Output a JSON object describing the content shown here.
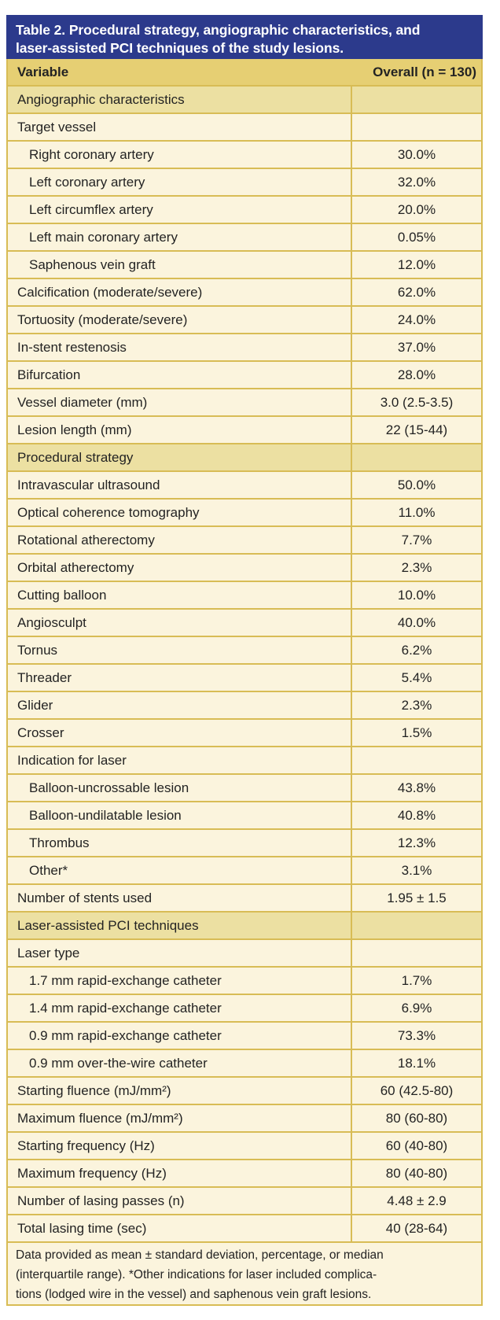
{
  "colors": {
    "title_bar": "#2c3a8c",
    "title_text": "#ffffff",
    "header_row_bg": "#e6cf73",
    "section_row_bg": "#ece0a2",
    "row_bg": "#fbf4dd",
    "grid_line": "#d8bc55",
    "text": "#232323"
  },
  "table": {
    "title_lines": [
      "Table 2. Procedural strategy, angiographic characteristics, and",
      "laser-assisted PCI techniques of the study lesions."
    ],
    "header": {
      "variable_label": "Variable",
      "overall_label": "Overall (n = 130)"
    },
    "rows": [
      {
        "type": "section",
        "label": "Angiographic characteristics",
        "value": "",
        "indent": false
      },
      {
        "type": "data",
        "label": "Target vessel",
        "value": "",
        "indent": false
      },
      {
        "type": "data",
        "label": "Right coronary artery",
        "value": "30.0%",
        "indent": true
      },
      {
        "type": "data",
        "label": "Left coronary artery",
        "value": "32.0%",
        "indent": true
      },
      {
        "type": "data",
        "label": "Left circumflex artery",
        "value": "20.0%",
        "indent": true
      },
      {
        "type": "data",
        "label": "Left main coronary artery",
        "value": "0.05%",
        "indent": true
      },
      {
        "type": "data",
        "label": "Saphenous vein graft",
        "value": "12.0%",
        "indent": true
      },
      {
        "type": "data",
        "label": "Calcification (moderate/severe)",
        "value": "62.0%",
        "indent": false
      },
      {
        "type": "data",
        "label": "Tortuosity (moderate/severe)",
        "value": "24.0%",
        "indent": false
      },
      {
        "type": "data",
        "label": "In-stent restenosis",
        "value": "37.0%",
        "indent": false
      },
      {
        "type": "data",
        "label": "Bifurcation",
        "value": "28.0%",
        "indent": false
      },
      {
        "type": "data",
        "label": "Vessel diameter (mm)",
        "value": "3.0 (2.5-3.5)",
        "indent": false
      },
      {
        "type": "data",
        "label": "Lesion length (mm)",
        "value": "22 (15-44)",
        "indent": false
      },
      {
        "type": "section",
        "label": "Procedural strategy",
        "value": "",
        "indent": false
      },
      {
        "type": "data",
        "label": "Intravascular ultrasound",
        "value": "50.0%",
        "indent": false
      },
      {
        "type": "data",
        "label": "Optical coherence tomography",
        "value": "11.0%",
        "indent": false
      },
      {
        "type": "data",
        "label": "Rotational atherectomy",
        "value": "7.7%",
        "indent": false
      },
      {
        "type": "data",
        "label": "Orbital atherectomy",
        "value": "2.3%",
        "indent": false
      },
      {
        "type": "data",
        "label": "Cutting balloon",
        "value": "10.0%",
        "indent": false
      },
      {
        "type": "data",
        "label": "Angiosculpt",
        "value": "40.0%",
        "indent": false
      },
      {
        "type": "data",
        "label": "Tornus",
        "value": "6.2%",
        "indent": false
      },
      {
        "type": "data",
        "label": "Threader",
        "value": "5.4%",
        "indent": false
      },
      {
        "type": "data",
        "label": "Glider",
        "value": "2.3%",
        "indent": false
      },
      {
        "type": "data",
        "label": "Crosser",
        "value": "1.5%",
        "indent": false
      },
      {
        "type": "data",
        "label": "Indication for laser",
        "value": "",
        "indent": false
      },
      {
        "type": "data",
        "label": "Balloon-uncrossable lesion",
        "value": "43.8%",
        "indent": true
      },
      {
        "type": "data",
        "label": "Balloon-undilatable lesion",
        "value": "40.8%",
        "indent": true
      },
      {
        "type": "data",
        "label": "Thrombus",
        "value": "12.3%",
        "indent": true
      },
      {
        "type": "data",
        "label": "Other*",
        "value": "3.1%",
        "indent": true
      },
      {
        "type": "data",
        "label": "Number of stents used",
        "value": "1.95 ± 1.5",
        "indent": false
      },
      {
        "type": "section",
        "label": "Laser-assisted PCI techniques",
        "value": "",
        "indent": false
      },
      {
        "type": "data",
        "label": "Laser type",
        "value": "",
        "indent": false
      },
      {
        "type": "data",
        "label": "1.7 mm rapid-exchange catheter",
        "value": "1.7%",
        "indent": true
      },
      {
        "type": "data",
        "label": "1.4 mm  rapid-exchange catheter",
        "value": "6.9%",
        "indent": true
      },
      {
        "type": "data",
        "label": "0.9 mm  rapid-exchange catheter",
        "value": "73.3%",
        "indent": true
      },
      {
        "type": "data",
        "label": "0.9 mm over-the-wire catheter",
        "value": "18.1%",
        "indent": true
      },
      {
        "type": "data",
        "label": "Starting fluence (mJ/mm²)",
        "value": "60 (42.5-80)",
        "indent": false
      },
      {
        "type": "data",
        "label": "Maximum fluence (mJ/mm²)",
        "value": "80 (60-80)",
        "indent": false
      },
      {
        "type": "data",
        "label": "Starting frequency (Hz)",
        "value": "60 (40-80)",
        "indent": false
      },
      {
        "type": "data",
        "label": "Maximum frequency (Hz)",
        "value": "80 (40-80)",
        "indent": false
      },
      {
        "type": "data",
        "label": "Number of lasing passes (n)",
        "value": "4.48 ± 2.9",
        "indent": false
      },
      {
        "type": "data",
        "label": "Total lasing time (sec)",
        "value": "40 (28-64)",
        "indent": false
      }
    ],
    "footnote_lines": [
      "Data provided as mean ± standard deviation, percentage, or median",
      "(interquartile range). *Other indications for laser included complica-",
      "tions (lodged wire in the vessel) and saphenous vein graft lesions."
    ]
  }
}
